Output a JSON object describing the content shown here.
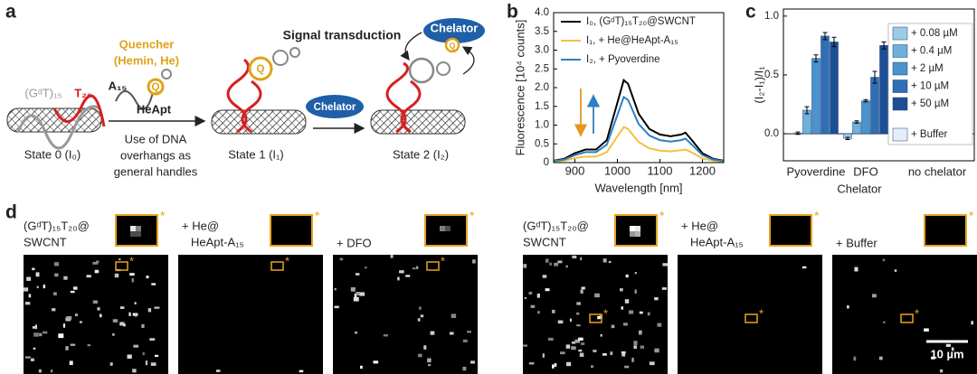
{
  "panel_labels": [
    "a",
    "b",
    "c",
    "d"
  ],
  "schematic": {
    "strand1": "(GᵈT)₁₅",
    "strand2": "T₂₀",
    "quencher": "Quencher",
    "quencher_name": "(Hemin, He)",
    "overhang": "A₁₅",
    "aptamer": "HeApt",
    "quencher_symbol": "Q",
    "step_note": [
      "Use of DNA",
      "overhangs as",
      "general handles"
    ],
    "states": [
      "State 0 (I₀)",
      "State 1 (I₁)",
      "State 2 (I₂)"
    ],
    "transduction": "Signal transduction",
    "chelator": "Chelator"
  },
  "chart_data": [
    {
      "type": "line",
      "xlabel": "Wavelength [nm]",
      "ylabel": "Fluorescence [10⁴ counts]",
      "x": [
        850,
        875,
        900,
        925,
        950,
        975,
        1000,
        1015,
        1025,
        1050,
        1075,
        1100,
        1125,
        1150,
        1160,
        1175,
        1200,
        1225,
        1250
      ],
      "series": [
        {
          "name": "I₀, (GᵈT)₁₅T₂₀@SWCNT",
          "color": "#000000",
          "values": [
            0.05,
            0.1,
            0.25,
            0.35,
            0.35,
            0.6,
            1.6,
            2.2,
            2.1,
            1.3,
            0.9,
            0.75,
            0.7,
            0.75,
            0.8,
            0.6,
            0.25,
            0.1,
            0.05
          ]
        },
        {
          "name": "I₁, + He@HeApt-A₁₅",
          "color": "#f2c13d",
          "values": [
            0.02,
            0.05,
            0.12,
            0.16,
            0.16,
            0.28,
            0.7,
            0.95,
            0.9,
            0.55,
            0.38,
            0.32,
            0.3,
            0.33,
            0.35,
            0.27,
            0.11,
            0.05,
            0.02
          ]
        },
        {
          "name": "I₂, + Pyoverdine",
          "color": "#2e7fc1",
          "values": [
            0.04,
            0.08,
            0.2,
            0.28,
            0.28,
            0.48,
            1.27,
            1.75,
            1.67,
            1.03,
            0.72,
            0.6,
            0.56,
            0.6,
            0.64,
            0.48,
            0.2,
            0.08,
            0.04
          ]
        }
      ],
      "xlim": [
        850,
        1250
      ],
      "xticks": [
        900,
        1000,
        1100,
        1200
      ],
      "ylim": [
        0,
        4
      ],
      "yticks": [
        0,
        0.5,
        {
          "value": 1,
          "label": "1.0"
        },
        1.5,
        {
          "value": 2,
          "label": "2.0"
        },
        2.5,
        {
          "value": 3,
          "label": "3.0"
        },
        3.5,
        {
          "value": 4,
          "label": "4.0"
        }
      ],
      "legend": "upper right"
    },
    {
      "type": "bar",
      "xlabel": "Chelator",
      "ylabel": "(I₂-I₁)/I₁",
      "categories": [
        "Pyoverdine",
        "DFO",
        "no chelator"
      ],
      "series": [
        {
          "name": "+ 0.08 µM",
          "color": "#9ccbe8",
          "values": [
            0.005,
            -0.04,
            null
          ],
          "errors": [
            0.01,
            0.01,
            null
          ]
        },
        {
          "name": "+ 0.4 µM",
          "color": "#6fb0dc",
          "values": [
            0.2,
            0.1,
            null
          ],
          "errors": [
            0.03,
            0.01,
            null
          ]
        },
        {
          "name": "+ 2 µM",
          "color": "#4a93cd",
          "values": [
            0.64,
            0.28,
            null
          ],
          "errors": [
            0.03,
            0.01,
            null
          ]
        },
        {
          "name": "+ 10 µM",
          "color": "#2e6fb5",
          "values": [
            0.83,
            0.48,
            null
          ],
          "errors": [
            0.03,
            0.05,
            null
          ]
        },
        {
          "name": "+ 50 µM",
          "color": "#1c4f96",
          "values": [
            0.78,
            0.75,
            null
          ],
          "errors": [
            0.04,
            0.03,
            null
          ]
        },
        {
          "name": "+ Buffer",
          "color": "#e4eef9",
          "values": [
            null,
            null,
            -0.04
          ],
          "errors": [
            null,
            null,
            0.01
          ]
        }
      ],
      "ylim": [
        -0.23,
        1.06
      ],
      "yticks": [
        {
          "value": 0,
          "label": "0.0"
        },
        0.5,
        {
          "value": 1,
          "label": "1.0"
        }
      ],
      "legend": "upper right"
    }
  ],
  "imaging": {
    "panels": [
      {
        "label_lines": [
          "(GᵈT)₁₅T₂₀@",
          "SWCNT"
        ]
      },
      {
        "label_lines": [
          "+ He@",
          "HeApt-A₁₅"
        ]
      },
      {
        "label_lines": [
          "+ DFO"
        ]
      },
      {
        "label_lines": [
          "(GᵈT)₁₅T₂₀@",
          "SWCNT"
        ]
      },
      {
        "label_lines": [
          "+ He@",
          "HeApt-A₁₅"
        ]
      },
      {
        "label_lines": [
          "+ Buffer"
        ]
      }
    ],
    "marker": "*",
    "scale_bar": "10 µm"
  }
}
